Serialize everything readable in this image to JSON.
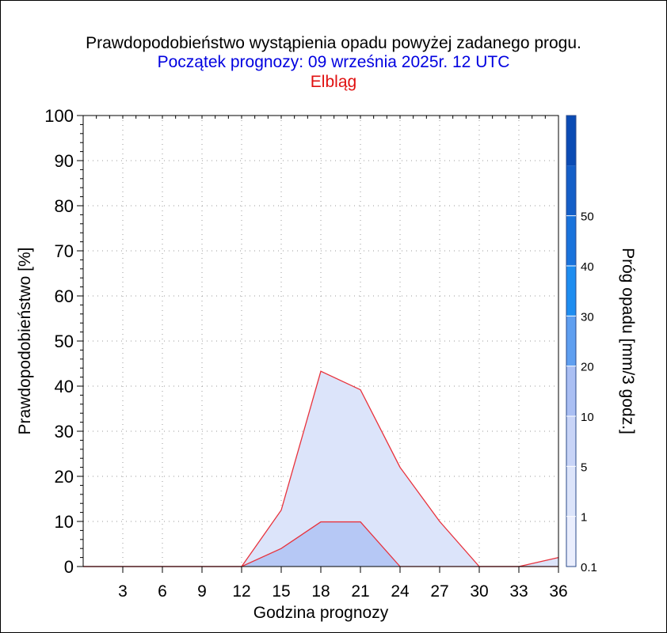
{
  "header": {
    "title": "Prawdopodobieństwo wystąpienia opadu powyżej zadanego progu.",
    "subtitle": "Początek prognozy: 09 września 2025r. 12 UTC",
    "location": "Elbląg"
  },
  "chart_data": {
    "type": "area",
    "xlabel": "Godzina prognozy",
    "ylabel": "Prawdopodobieństwo [%]",
    "xlim": [
      0,
      36
    ],
    "ylim": [
      0,
      100
    ],
    "xticks": [
      3,
      6,
      9,
      12,
      15,
      18,
      21,
      24,
      27,
      30,
      33,
      36
    ],
    "yticks": [
      0,
      10,
      20,
      30,
      40,
      50,
      60,
      70,
      80,
      90,
      100
    ],
    "grid": true,
    "x": [
      0,
      3,
      6,
      9,
      12,
      15,
      18,
      21,
      24,
      27,
      30,
      33,
      36
    ],
    "series": [
      {
        "name": "0.1",
        "threshold": 0.1,
        "color": "#dce4fa",
        "values": [
          0,
          0,
          0,
          0,
          0,
          12.5,
          43.3,
          39.2,
          22.0,
          10.0,
          0,
          0,
          2.0
        ]
      },
      {
        "name": "1",
        "threshold": 1,
        "color": "#b6c8f5",
        "values": [
          0,
          0,
          0,
          0,
          0,
          4.0,
          9.9,
          9.9,
          0,
          0,
          0,
          0,
          0
        ]
      }
    ],
    "line_color": "#e8323c",
    "colorbar": {
      "label": "Próg opadu [mm/3 godz.]",
      "tick_labels": [
        "0.1",
        "1",
        "5",
        "10",
        "20",
        "30",
        "40",
        "50"
      ],
      "colors": [
        "#eaeefd",
        "#dce4fa",
        "#c8d4f7",
        "#aabff3",
        "#5f9ff0",
        "#1e8df0",
        "#1973dc",
        "#145fc8",
        "#0a4bb4"
      ]
    }
  }
}
